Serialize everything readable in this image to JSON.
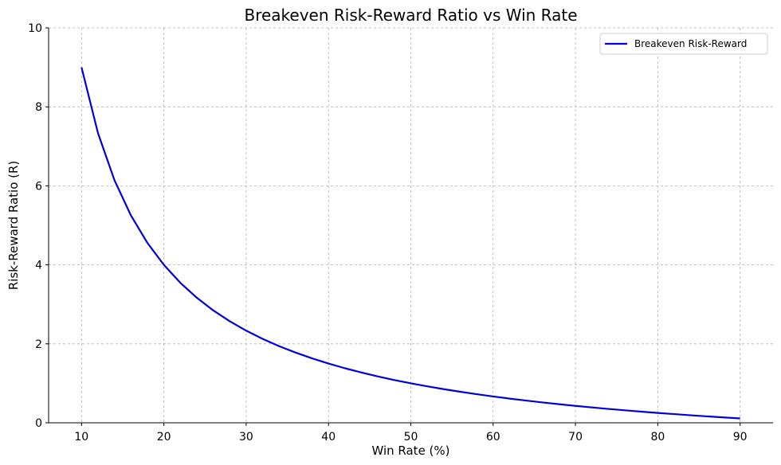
{
  "chart_data": {
    "type": "line",
    "title": "Breakeven Risk-Reward Ratio vs Win Rate",
    "xlabel": "Win Rate (%)",
    "ylabel": "Risk-Reward Ratio (R)",
    "xlim": [
      6,
      94
    ],
    "ylim": [
      0,
      10
    ],
    "xticks": [
      10,
      20,
      30,
      40,
      50,
      60,
      70,
      80,
      90
    ],
    "yticks": [
      0,
      2,
      4,
      6,
      8,
      10
    ],
    "grid": true,
    "legend_position": "top-right",
    "series": [
      {
        "name": "Breakeven Risk-Reward",
        "color": "#0000dd",
        "x": [
          10,
          12,
          14,
          16,
          18,
          20,
          22,
          24,
          26,
          28,
          30,
          32,
          34,
          36,
          38,
          40,
          42,
          44,
          46,
          48,
          50,
          52,
          54,
          56,
          58,
          60,
          62,
          64,
          66,
          68,
          70,
          72,
          74,
          76,
          78,
          80,
          82,
          84,
          86,
          88,
          90
        ],
        "values": [
          9.0,
          7.333,
          6.143,
          5.25,
          4.556,
          4.0,
          3.545,
          3.167,
          2.846,
          2.571,
          2.333,
          2.125,
          1.941,
          1.778,
          1.632,
          1.5,
          1.381,
          1.273,
          1.174,
          1.083,
          1.0,
          0.923,
          0.852,
          0.786,
          0.724,
          0.667,
          0.613,
          0.563,
          0.515,
          0.471,
          0.429,
          0.389,
          0.351,
          0.316,
          0.282,
          0.25,
          0.22,
          0.19,
          0.163,
          0.136,
          0.111
        ]
      }
    ]
  }
}
